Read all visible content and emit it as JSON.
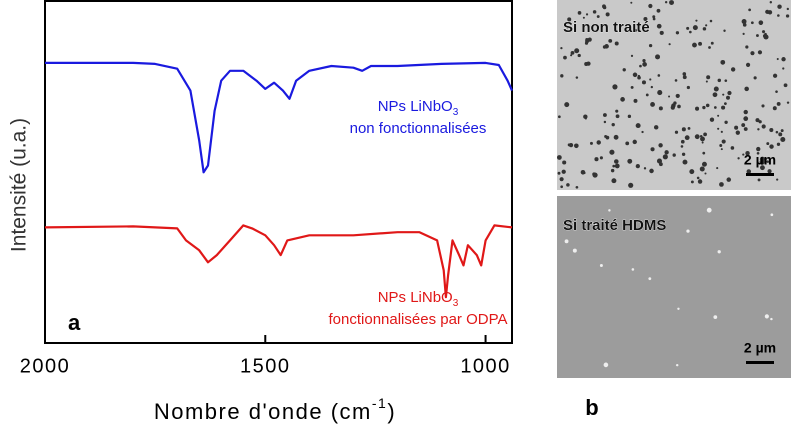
{
  "chart_data": {
    "type": "line",
    "ylabel": "Intensité (u.a.)",
    "xlabel": {
      "text": "Nombre d'onde (cm",
      "superscript": "-1",
      "end": ")"
    },
    "panel_label": "a",
    "xlim": [
      2000,
      940
    ],
    "xticks": [
      2000,
      1500,
      1000
    ],
    "ylim": [
      0,
      100
    ],
    "series": [
      {
        "color": "#1a1adf",
        "label": {
          "text": "NPs LiNbO",
          "subscript": "3",
          "line2": "non fonctionnalisées"
        },
        "x": [
          2000,
          1900,
          1800,
          1750,
          1700,
          1670,
          1650,
          1640,
          1630,
          1615,
          1600,
          1580,
          1550,
          1520,
          1500,
          1480,
          1460,
          1445,
          1430,
          1400,
          1350,
          1300,
          1280,
          1260,
          1200,
          1100,
          1000,
          970,
          950,
          940
        ],
        "values": [
          81.9,
          81.9,
          81.9,
          81.6,
          80.2,
          73.8,
          59.2,
          49.9,
          51.9,
          67.9,
          76.7,
          79.6,
          79.6,
          76.7,
          74.3,
          76.1,
          73.8,
          71.4,
          76.7,
          79.6,
          81.0,
          80.5,
          79.6,
          81.0,
          81.0,
          81.6,
          81.9,
          81.3,
          76.7,
          73.8
        ]
      },
      {
        "color": "#e01818",
        "label": {
          "text": "NPs LiNbO",
          "subscript": "3",
          "line2": "fonctionnalisées par ODPA"
        },
        "x": [
          2000,
          1800,
          1700,
          1680,
          1650,
          1630,
          1610,
          1580,
          1550,
          1530,
          1500,
          1480,
          1465,
          1450,
          1400,
          1300,
          1200,
          1150,
          1110,
          1095,
          1090,
          1085,
          1075,
          1060,
          1050,
          1040,
          1020,
          1010,
          1000,
          980,
          940
        ],
        "values": [
          33.8,
          34.1,
          33.5,
          30.0,
          27.1,
          23.6,
          25.7,
          30.0,
          34.4,
          33.5,
          31.5,
          28.6,
          25.7,
          30.0,
          31.5,
          31.5,
          32.4,
          32.4,
          30.0,
          21.3,
          13.4,
          19.8,
          30.0,
          25.7,
          22.7,
          28.6,
          25.7,
          22.7,
          30.0,
          34.4,
          33.8
        ]
      }
    ]
  },
  "images": [
    {
      "label": "Si non traité",
      "scale_bar": "2 µm"
    },
    {
      "label": "Si traité HDMS",
      "scale_bar": "2 µm"
    }
  ],
  "panel_b_label": "b"
}
